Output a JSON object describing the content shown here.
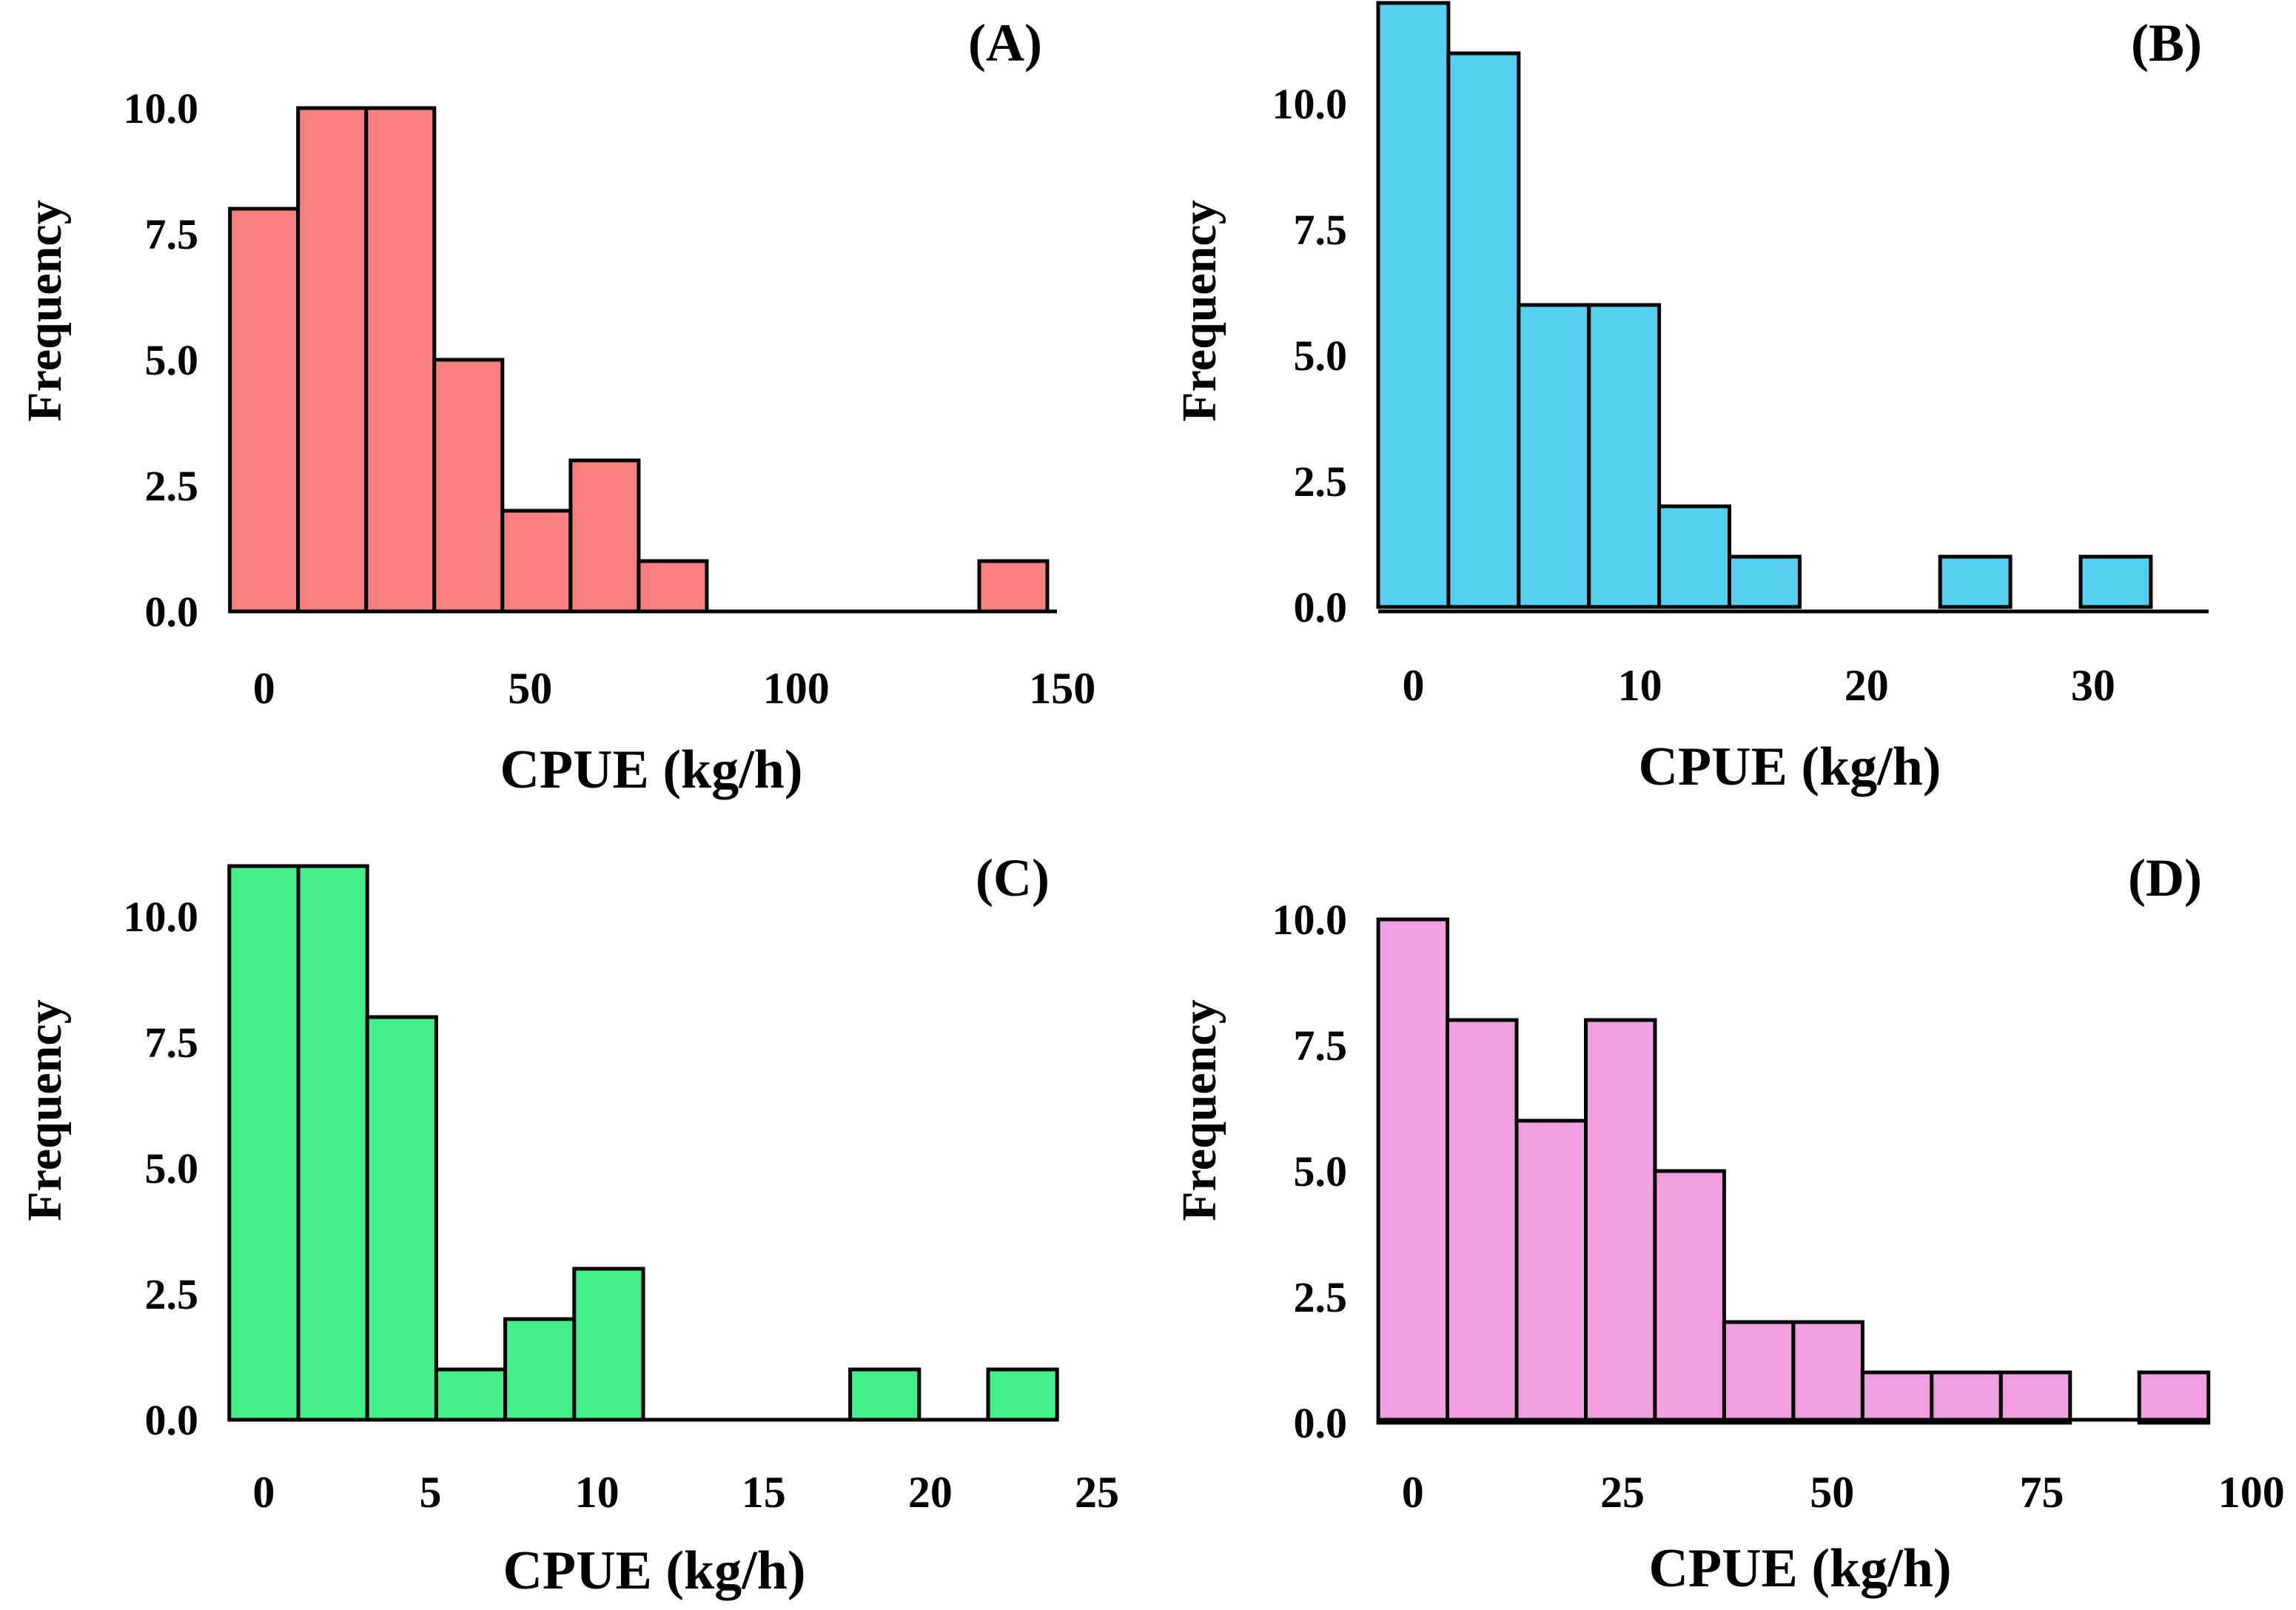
{
  "figure": {
    "bar_stroke": "#000000",
    "background": "#ffffff"
  },
  "chart_data": [
    {
      "type": "bar",
      "panel": "(A)",
      "color": "#fa8080",
      "xlabel": "CPUE (kg/h)",
      "ylabel": "Frequency",
      "bin_start": 0,
      "bin_width": 12.8,
      "counts": [
        8,
        10,
        10,
        5,
        2,
        3,
        1,
        0,
        0,
        0,
        0,
        1
      ],
      "xlim": [
        -6.5,
        149
      ],
      "ylim": [
        0,
        10
      ],
      "xticks": [
        0,
        50,
        100,
        150
      ],
      "xtick_labels": [
        "0",
        "50",
        "100",
        "150"
      ],
      "yticks": [
        0,
        2.5,
        5,
        7.5,
        10
      ],
      "ytick_labels": [
        "0.0",
        "2.5",
        "5.0",
        "7.5",
        "10.0"
      ]
    },
    {
      "type": "bar",
      "panel": "(B)",
      "color": "#56cfee",
      "xlabel": "CPUE (kg/h)",
      "ylabel": "Frequency",
      "bin_start": 0,
      "bin_width": 3.1,
      "counts": [
        12,
        11,
        6,
        6,
        2,
        1,
        0,
        0,
        1,
        0,
        1
      ],
      "xlim": [
        -1.55,
        35.1
      ],
      "ylim": [
        0,
        10
      ],
      "xticks": [
        0,
        10,
        20,
        30
      ],
      "xtick_labels": [
        "0",
        "10",
        "20",
        "30"
      ],
      "yticks": [
        0,
        2.5,
        5,
        7.5,
        10
      ],
      "ytick_labels": [
        "0.0",
        "2.5",
        "5.0",
        "7.5",
        "10.0"
      ]
    },
    {
      "type": "bar",
      "panel": "(C)",
      "color": "#44ee88",
      "xlabel": "CPUE (kg/h)",
      "ylabel": "Frequency",
      "bin_start": 0,
      "bin_width": 2.07,
      "counts": [
        11,
        11,
        8,
        1,
        2,
        3,
        0,
        0,
        0,
        1,
        0,
        1
      ],
      "xlim": [
        -1.03,
        23.8
      ],
      "ylim": [
        0,
        10
      ],
      "xticks": [
        0,
        5,
        10,
        15,
        20,
        25
      ],
      "xtick_labels": [
        "0",
        "5",
        "10",
        "15",
        "20",
        "25"
      ],
      "yticks": [
        0,
        2.5,
        5,
        7.5,
        10
      ],
      "ytick_labels": [
        "0.0",
        "2.5",
        "5.0",
        "7.5",
        "10.0"
      ]
    },
    {
      "type": "bar",
      "panel": "(D)",
      "color": "#f0a0e0",
      "xlabel": "CPUE (kg/h)",
      "ylabel": "Frequency",
      "bin_start": 0,
      "bin_width": 8.25,
      "counts": [
        10,
        8,
        6,
        8,
        5,
        2,
        2,
        1,
        1,
        1,
        0,
        1
      ],
      "xlim": [
        -4.13,
        94.9
      ],
      "ylim": [
        0,
        10
      ],
      "xticks": [
        0,
        25,
        50,
        75,
        100
      ],
      "xtick_labels": [
        "0",
        "25",
        "50",
        "75",
        "100"
      ],
      "yticks": [
        0,
        2.5,
        5,
        7.5,
        10
      ],
      "ytick_labels": [
        "0.0",
        "2.5",
        "5.0",
        "7.5",
        "10.0"
      ]
    }
  ]
}
